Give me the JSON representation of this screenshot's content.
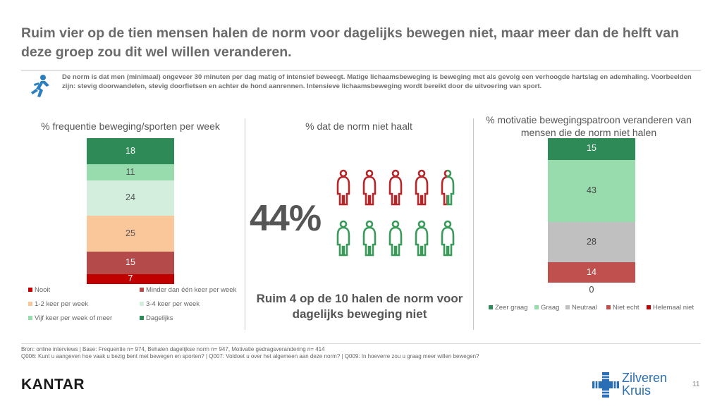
{
  "title": "Ruim vier op de tien mensen halen de norm voor dagelijks bewegen niet, maar meer dan de helft van deze groep zou dit wel willen veranderen.",
  "intro": "De norm is dat men (minimaal) ongeveer 30 minuten per dag matig of intensief beweegt. Matige lichaamsbeweging is beweging met als gevolg een verhoogde hartslag en ademhaling. Voorbeelden zijn: stevig doorwandelen, stevig doorfietsen en achter de hond aanrennen. Intensieve lichaamsbeweging wordt bereikt door de uitvoering van sport.",
  "icons": {
    "intro": "running-person-icon",
    "person": "person-icon",
    "brand": "cross-logo-icon"
  },
  "colors": {
    "dagelijks": "#2e8b57",
    "vijf": "#98dcae",
    "drie_vier": "#d3eedd",
    "een_twee": "#f9c79a",
    "minder": "#b54a4a",
    "nooit": "#c00000",
    "zeer_graag": "#2e8b57",
    "graag": "#98dcae",
    "neutraal": "#c0c0c0",
    "niet_echt": "#c0504d",
    "helemaal_niet": "#c00000",
    "person_red": "#b5262b",
    "person_green": "#3a9a5a"
  },
  "chart_data": [
    {
      "type": "bar",
      "stacked": true,
      "title": "% frequentie beweging/sporten per week",
      "categories": [
        ""
      ],
      "series": [
        {
          "name": "Nooit",
          "values": [
            7
          ]
        },
        {
          "name": "Minder dan één keer per week",
          "values": [
            15
          ]
        },
        {
          "name": "1-2 keer per week",
          "values": [
            25
          ]
        },
        {
          "name": "3-4 keer per week",
          "values": [
            24
          ]
        },
        {
          "name": "Vijf keer per week of meer",
          "values": [
            11
          ]
        },
        {
          "name": "Dagelijks",
          "values": [
            18
          ]
        }
      ]
    },
    {
      "type": "pictogram",
      "title": "% dat de norm niet haalt",
      "value_label": "44%",
      "value": 44,
      "total_icons": 10,
      "subtitle": "Ruim 4 op de 10 halen de norm voor dagelijks beweging niet"
    },
    {
      "type": "bar",
      "stacked": true,
      "title": "% motivatie bewegingspatroon veranderen van mensen die de norm niet halen",
      "categories": [
        ""
      ],
      "series": [
        {
          "name": "Helemaal niet",
          "values": [
            0
          ]
        },
        {
          "name": "Niet echt",
          "values": [
            14
          ]
        },
        {
          "name": "Neutraal",
          "values": [
            28
          ]
        },
        {
          "name": "Graag",
          "values": [
            43
          ]
        },
        {
          "name": "Zeer graag",
          "values": [
            15
          ]
        }
      ]
    }
  ],
  "footnote": {
    "line1": "Bron: online interviews | Base: Frequentie n= 974, Behalen dagelijkse norm n= 947, Motivatie gedragsverandering n= 414",
    "line2": "Q006: Kunt u aangeven hoe vaak u bezig bent met bewegen en sporten? | Q007: Voldoet u over het algemeen aan deze norm? | Q009: In hoeverre zou u graag meer willen bewegen?"
  },
  "logo_left": "KANTAR",
  "logo_right": {
    "line1": "Zilveren",
    "line2": "Kruis"
  },
  "page_number": "11"
}
